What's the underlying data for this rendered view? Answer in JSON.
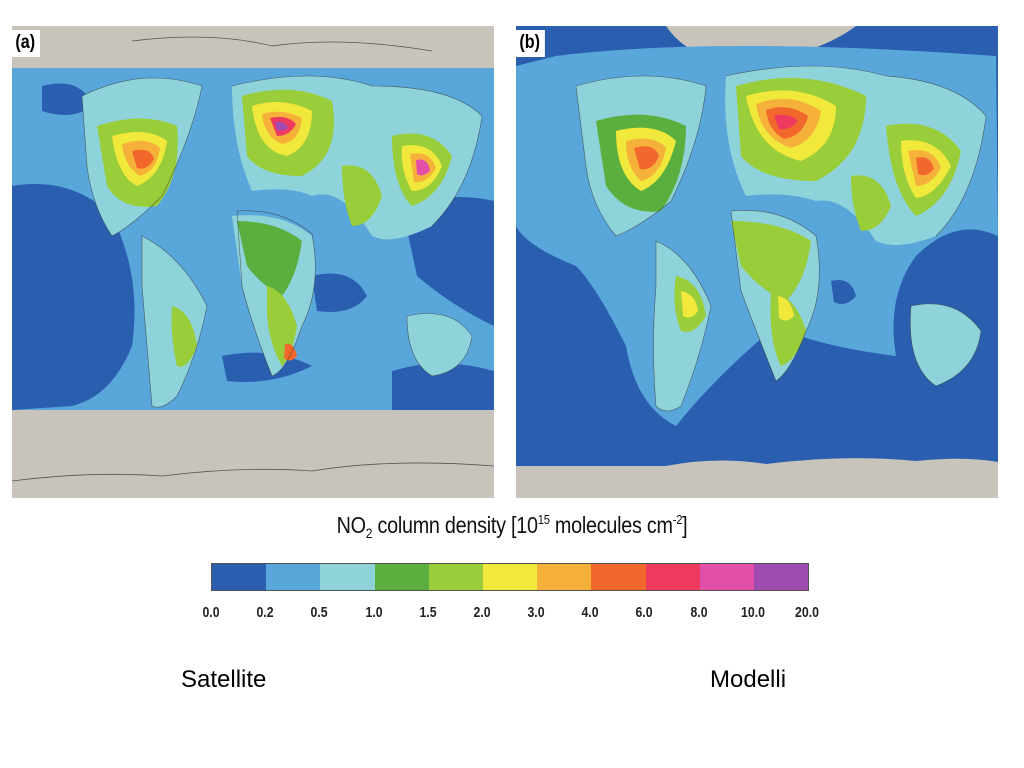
{
  "panels": [
    {
      "label": "(a)"
    },
    {
      "label": "(b)"
    }
  ],
  "legend": {
    "title_prefix": "NO",
    "title_sub": "2",
    "title_mid": " column density [10",
    "title_sup1": "15",
    "title_mid2": " molecules cm",
    "title_sup2": "-2",
    "title_end": "]",
    "colors": [
      "#2a5fb0",
      "#58a6da",
      "#8fd3da",
      "#5aaf3f",
      "#9acd3a",
      "#f0e83a",
      "#f6b13a",
      "#f2672c",
      "#ee3a5e",
      "#e24fa8",
      "#a04bb0"
    ],
    "ticks": [
      "0.0",
      "0.2",
      "0.5",
      "1.0",
      "1.5",
      "2.0",
      "3.0",
      "4.0",
      "6.0",
      "8.0",
      "10.0",
      "20.0"
    ]
  },
  "captions": {
    "left": "Satellite",
    "right": "Modelli"
  }
}
